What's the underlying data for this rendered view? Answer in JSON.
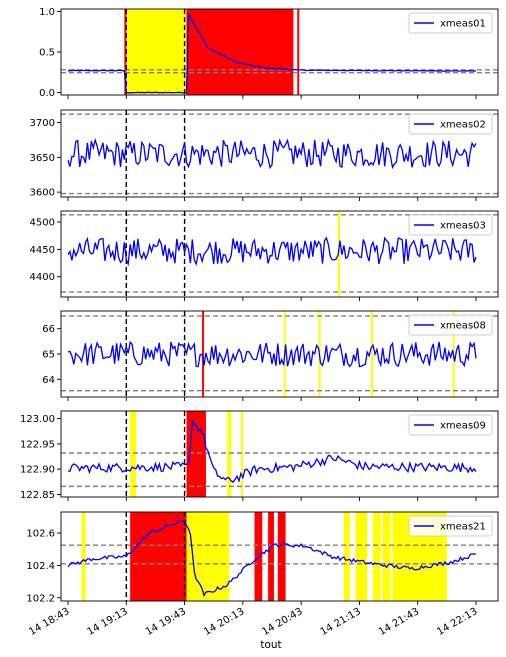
{
  "chart_data": {
    "type": "line",
    "xlabel": "tout",
    "x_tick_labels": [
      "14 18:43",
      "14 19:13",
      "14 19:43",
      "14 20:13",
      "14 20:43",
      "14 21:13",
      "14 21:43",
      "14 22:13"
    ],
    "x_range": [
      "14 18:43",
      "14 22:13"
    ],
    "threshold_line_style": "gray dashed",
    "event_line_style": "black dashed",
    "event_times": [
      "14 19:13",
      "14 19:43"
    ],
    "highlight_colors": {
      "yellow": "#ffff00",
      "red": "#ff0000"
    },
    "line_color": "#0000ff",
    "legend_position": "top-right",
    "panels": [
      {
        "series": "xmeas01",
        "ylim": [
          -0.03,
          1.03
        ],
        "yticks": [
          "0.0",
          "0.5",
          "1.0"
        ],
        "thresholds": [
          0.28,
          0.245
        ],
        "baseline": 0.27,
        "noise": 0.004,
        "shape": [
          [
            "14 18:43",
            0.27
          ],
          [
            "14 19:12",
            0.27
          ],
          [
            "14 19:13",
            0.0
          ],
          [
            "14 19:44",
            0.0
          ],
          [
            "14 19:45",
            0.97
          ],
          [
            "14 19:55",
            0.55
          ],
          [
            "14 20:10",
            0.37
          ],
          [
            "14 20:25",
            0.3
          ],
          [
            "14 20:45",
            0.275
          ],
          [
            "14 22:13",
            0.265
          ]
        ],
        "red": [
          [
            "14 19:12",
            "14 19:13"
          ],
          [
            "14 19:44",
            "14 20:39"
          ],
          [
            "14 20:41",
            "14 20:42"
          ]
        ],
        "yellow": [
          [
            "14 19:13",
            "14 19:44"
          ]
        ]
      },
      {
        "series": "xmeas02",
        "ylim": [
          3593,
          3718
        ],
        "yticks": [
          "3600",
          "3650",
          "3700"
        ],
        "thresholds": [
          3712,
          3598
        ],
        "baseline": 3655,
        "noise": 20,
        "red": [],
        "yellow": []
      },
      {
        "series": "xmeas03",
        "ylim": [
          4363,
          4520
        ],
        "yticks": [
          "4400",
          "4450",
          "4500"
        ],
        "thresholds": [
          4513,
          4372
        ],
        "baseline": 4447,
        "noise": 24,
        "red": [],
        "yellow": [
          [
            "14 21:02",
            "14 21:03"
          ]
        ]
      },
      {
        "series": "xmeas08",
        "ylim": [
          63.3,
          66.7
        ],
        "yticks": [
          "64",
          "65",
          "66"
        ],
        "thresholds": [
          66.5,
          63.55
        ],
        "baseline": 65.0,
        "noise": 0.5,
        "red": [
          [
            "14 19:52",
            "14 19:53"
          ]
        ],
        "yellow": [
          [
            "14 20:34",
            "14 20:35"
          ],
          [
            "14 20:52",
            "14 20:53"
          ],
          [
            "14 21:19",
            "14 21:20"
          ],
          [
            "14 22:01",
            "14 22:02"
          ]
        ]
      },
      {
        "series": "xmeas09",
        "ylim": [
          122.845,
          123.015
        ],
        "yticks": [
          "122.85",
          "122.90",
          "122.95",
          "123.00"
        ],
        "thresholds": [
          122.932,
          122.866
        ],
        "baseline": 122.905,
        "noise": 0.009,
        "shape": [
          [
            "14 18:43",
            122.902
          ],
          [
            "14 19:45",
            122.905
          ],
          [
            "14 19:47",
            122.995
          ],
          [
            "14 19:52",
            122.975
          ],
          [
            "14 19:58",
            122.895
          ],
          [
            "14 20:05",
            122.875
          ],
          [
            "14 20:20",
            122.9
          ],
          [
            "14 20:40",
            122.905
          ],
          [
            "14 21:00",
            122.922
          ],
          [
            "14 21:15",
            122.905
          ],
          [
            "14 22:13",
            122.903
          ]
        ],
        "red": [
          [
            "14 19:44",
            "14 19:54"
          ]
        ],
        "yellow": [
          [
            "14 19:15",
            "14 19:18"
          ],
          [
            "14 20:05",
            "14 20:07"
          ],
          [
            "14 20:12",
            "14 20:13"
          ]
        ]
      },
      {
        "series": "xmeas21",
        "ylim": [
          102.18,
          102.73
        ],
        "yticks": [
          "102.2",
          "102.4",
          "102.6"
        ],
        "thresholds": [
          102.525,
          102.41
        ],
        "baseline": 102.44,
        "noise": 0.012,
        "shape": [
          [
            "14 18:43",
            102.4
          ],
          [
            "14 18:55",
            102.44
          ],
          [
            "14 19:13",
            102.455
          ],
          [
            "14 19:25",
            102.6
          ],
          [
            "14 19:43",
            102.68
          ],
          [
            "14 19:46",
            102.6
          ],
          [
            "14 19:48",
            102.35
          ],
          [
            "14 19:53",
            102.22
          ],
          [
            "14 20:05",
            102.28
          ],
          [
            "14 20:20",
            102.45
          ],
          [
            "14 20:30",
            102.53
          ],
          [
            "14 20:45",
            102.52
          ],
          [
            "14 21:00",
            102.45
          ],
          [
            "14 21:20",
            102.41
          ],
          [
            "14 21:40",
            102.38
          ],
          [
            "14 22:00",
            102.42
          ],
          [
            "14 22:13",
            102.47
          ]
        ],
        "red": [
          [
            "14 19:15",
            "14 19:44"
          ],
          [
            "14 20:19",
            "14 20:23"
          ],
          [
            "14 20:26",
            "14 20:29"
          ],
          [
            "14 20:31",
            "14 20:35"
          ]
        ],
        "yellow": [
          [
            "14 18:50",
            "14 18:52"
          ],
          [
            "14 19:44",
            "14 20:06"
          ],
          [
            "14 21:05",
            "14 21:08"
          ],
          [
            "14 21:11",
            "14 21:17"
          ],
          [
            "14 21:20",
            "14 21:24"
          ],
          [
            "14 21:25",
            "14 21:29"
          ],
          [
            "14 21:30",
            "14 21:58"
          ]
        ]
      }
    ]
  }
}
